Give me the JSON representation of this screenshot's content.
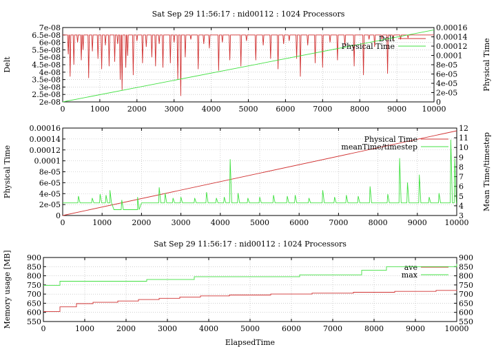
{
  "colors": {
    "red": "#d03030",
    "green": "#40e040",
    "green_label": "#20c020"
  },
  "chart_data": [
    {
      "type": "line",
      "title": "Sat Sep 29 11:56:17 : nid00112 : 1024 Processors",
      "xlabel": "",
      "ylabel": "Delt",
      "y2label": "Physical Time",
      "xlim": [
        0,
        10000
      ],
      "ylim": [
        2e-08,
        7e-08
      ],
      "y2lim": [
        0,
        0.00016
      ],
      "x_ticks": [
        "0",
        "1000",
        "2000",
        "3000",
        "4000",
        "5000",
        "6000",
        "7000",
        "8000",
        "9000",
        "10000"
      ],
      "y_ticks": [
        "2e-08",
        "2.5e-08",
        "3e-08",
        "3.5e-08",
        "4e-08",
        "4.5e-08",
        "5e-08",
        "5.5e-08",
        "6e-08",
        "6.5e-08",
        "7e-08"
      ],
      "y2_ticks": [
        "0",
        "2e-05",
        "4e-05",
        "6e-05",
        "8e-05",
        "0.0001",
        "0.00012",
        "0.00014",
        "0.00016"
      ],
      "legend_position": "top-right",
      "grid": true,
      "series": [
        {
          "name": "Delt",
          "axis": "y",
          "color": "red",
          "kind": "spikes",
          "baseline": 6.5e-08,
          "spikes": [
            [
              150,
              5.2e-08
            ],
            [
              200,
              3.7e-08
            ],
            [
              300,
              4.5e-08
            ],
            [
              400,
              6e-08
            ],
            [
              500,
              4.8e-08
            ],
            [
              550,
              5.5e-08
            ],
            [
              700,
              3.6e-08
            ],
            [
              800,
              5.4e-08
            ],
            [
              950,
              4.9e-08
            ],
            [
              1050,
              4.2e-08
            ],
            [
              1150,
              5.8e-08
            ],
            [
              1250,
              4.4e-08
            ],
            [
              1400,
              4.7e-08
            ],
            [
              1480,
              5.9e-08
            ],
            [
              1550,
              3.5e-08
            ],
            [
              1600,
              2.8e-08
            ],
            [
              1700,
              4.3e-08
            ],
            [
              1750,
              5.1e-08
            ],
            [
              1900,
              3.8e-08
            ],
            [
              2000,
              6.1e-08
            ],
            [
              2150,
              4.6e-08
            ],
            [
              2250,
              5.7e-08
            ],
            [
              2400,
              5e-08
            ],
            [
              2500,
              4.4e-08
            ],
            [
              2600,
              5.9e-08
            ],
            [
              2700,
              4.3e-08
            ],
            [
              2900,
              4.6e-08
            ],
            [
              3000,
              6e-08
            ],
            [
              3100,
              3.5e-08
            ],
            [
              3180,
              2.4e-08
            ],
            [
              3300,
              5e-08
            ],
            [
              3450,
              6.2e-08
            ],
            [
              3650,
              4.2e-08
            ],
            [
              3800,
              5.9e-08
            ],
            [
              3950,
              5.6e-08
            ],
            [
              4200,
              4.1e-08
            ],
            [
              4300,
              6e-08
            ],
            [
              4500,
              4.8e-08
            ],
            [
              4800,
              4.4e-08
            ],
            [
              4950,
              6.1e-08
            ],
            [
              5200,
              4.8e-08
            ],
            [
              5400,
              5.8e-08
            ],
            [
              5600,
              4.9e-08
            ],
            [
              5800,
              4.2e-08
            ],
            [
              5950,
              5.9e-08
            ],
            [
              6100,
              6.1e-08
            ],
            [
              6300,
              4.9e-08
            ],
            [
              6400,
              3.7e-08
            ],
            [
              6600,
              5.8e-08
            ],
            [
              6800,
              4.6e-08
            ],
            [
              7000,
              4.3e-08
            ],
            [
              7200,
              6e-08
            ],
            [
              7400,
              4.8e-08
            ],
            [
              7600,
              5.8e-08
            ],
            [
              7850,
              4.4e-08
            ],
            [
              8100,
              3.8e-08
            ],
            [
              8250,
              6.2e-08
            ],
            [
              8400,
              5.7e-08
            ],
            [
              8600,
              6.2e-08
            ],
            [
              8750,
              3.9e-08
            ],
            [
              8900,
              6.1e-08
            ],
            [
              9100,
              6.2e-08
            ],
            [
              9300,
              6.3e-08
            ]
          ]
        },
        {
          "name": "Physical Time",
          "axis": "y2",
          "color": "green",
          "kind": "line",
          "x": [
            0,
            10000
          ],
          "y": [
            0,
            0.000155
          ]
        }
      ]
    },
    {
      "type": "line",
      "title": "",
      "xlabel": "",
      "ylabel": "Physical Time",
      "y2label": "Mean Time/timestep",
      "xlim": [
        0,
        10000
      ],
      "ylim": [
        0,
        0.00016
      ],
      "y2lim": [
        3,
        12
      ],
      "x_ticks": [
        "0",
        "1000",
        "2000",
        "3000",
        "4000",
        "5000",
        "6000",
        "7000",
        "8000",
        "9000",
        "10000"
      ],
      "y_ticks": [
        "0",
        "2e-05",
        "4e-05",
        "6e-05",
        "8e-05",
        "0.0001",
        "0.00012",
        "0.00014",
        "0.00016"
      ],
      "y2_ticks": [
        "3",
        "4",
        "5",
        "6",
        "7",
        "8",
        "9",
        "10",
        "11",
        "12"
      ],
      "legend_position": "top-right",
      "grid": true,
      "series": [
        {
          "name": "Physical Time",
          "axis": "y",
          "color": "red",
          "kind": "line",
          "x": [
            0,
            10000
          ],
          "y": [
            0,
            0.000155
          ]
        },
        {
          "name": "meanTime/timestep",
          "axis": "y2",
          "color": "green",
          "kind": "spiky",
          "baseline": 4.3,
          "segments": [
            [
              0,
              4.3
            ],
            [
              1200,
              4.3
            ],
            [
              1300,
              3.6
            ],
            [
              1900,
              3.6
            ],
            [
              2000,
              4.3
            ],
            [
              10000,
              4.3
            ]
          ],
          "spikes": [
            [
              400,
              5.0
            ],
            [
              750,
              4.8
            ],
            [
              950,
              5.2
            ],
            [
              1100,
              5.1
            ],
            [
              1200,
              5.6
            ],
            [
              1500,
              4.6
            ],
            [
              1900,
              4.9
            ],
            [
              2450,
              5.9
            ],
            [
              2600,
              5.3
            ],
            [
              2800,
              4.8
            ],
            [
              3000,
              4.9
            ],
            [
              3350,
              4.8
            ],
            [
              3650,
              5.4
            ],
            [
              3900,
              4.8
            ],
            [
              4100,
              4.9
            ],
            [
              4250,
              8.8
            ],
            [
              4450,
              5.3
            ],
            [
              4700,
              4.8
            ],
            [
              5000,
              4.9
            ],
            [
              5350,
              5.1
            ],
            [
              5700,
              5.0
            ],
            [
              5900,
              5.1
            ],
            [
              6250,
              4.8
            ],
            [
              6600,
              5.6
            ],
            [
              6900,
              4.9
            ],
            [
              7200,
              5.1
            ],
            [
              7500,
              5.0
            ],
            [
              7800,
              6.0
            ],
            [
              8250,
              5.2
            ],
            [
              8550,
              8.9
            ],
            [
              8750,
              6.4
            ],
            [
              9050,
              7.2
            ],
            [
              9300,
              4.9
            ],
            [
              9550,
              5.3
            ],
            [
              9850,
              10.8
            ],
            [
              9950,
              8.9
            ]
          ]
        }
      ]
    },
    {
      "type": "line",
      "title": "Sat Sep 29 11:56:17 : nid00112 : 1024 Processors",
      "xlabel": "ElapsedTime",
      "ylabel": "Memory usage [MB]",
      "y2label": "",
      "xlim": [
        0,
        10000
      ],
      "ylim": [
        550,
        900
      ],
      "y2lim": [
        550,
        900
      ],
      "x_ticks": [
        "0",
        "1000",
        "2000",
        "3000",
        "4000",
        "5000",
        "6000",
        "7000",
        "8000",
        "9000",
        "10000"
      ],
      "y_ticks": [
        "550",
        "600",
        "650",
        "700",
        "750",
        "800",
        "850",
        "900"
      ],
      "y2_ticks": [
        "550",
        "600",
        "650",
        "700",
        "750",
        "800",
        "850",
        "900"
      ],
      "legend_position": "top-right",
      "grid": true,
      "series": [
        {
          "name": "ave",
          "axis": "y",
          "color": "red",
          "kind": "step",
          "x": [
            0,
            400,
            800,
            1200,
            1800,
            2300,
            2800,
            3300,
            3800,
            4500,
            5500,
            6500,
            7500,
            8500,
            9500,
            10000
          ],
          "y": [
            605,
            630,
            648,
            655,
            662,
            670,
            677,
            684,
            690,
            695,
            700,
            705,
            710,
            715,
            720,
            722
          ]
        },
        {
          "name": "max",
          "axis": "y",
          "color": "green",
          "kind": "step",
          "x": [
            0,
            400,
            2500,
            3650,
            6200,
            7700,
            8300,
            10000
          ],
          "y": [
            748,
            770,
            780,
            795,
            805,
            830,
            850,
            865
          ]
        }
      ]
    }
  ]
}
